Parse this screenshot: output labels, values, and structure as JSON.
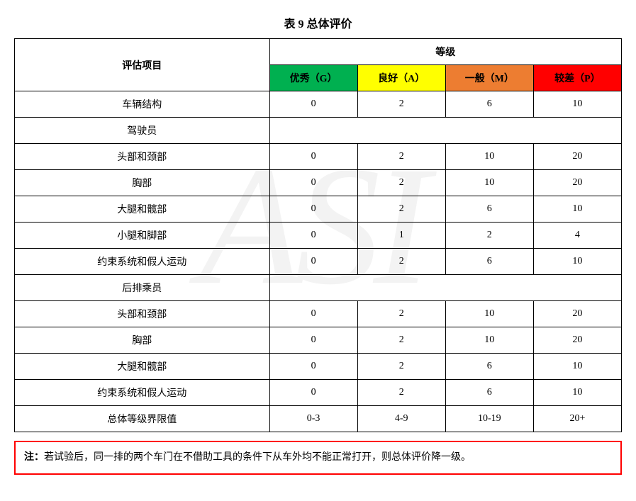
{
  "title": "表 9  总体评价",
  "columns": {
    "eval_item": "评估项目",
    "grade_header": "等级",
    "grade_g": "优秀（G）",
    "grade_a": "良好（A）",
    "grade_m": "一般（M）",
    "grade_p": "较差（P）"
  },
  "grade_colors": {
    "g": "#00b050",
    "a": "#ffff00",
    "m": "#ed7d31",
    "p": "#ff0000"
  },
  "rows": [
    {
      "label": "车辆结构",
      "g": "0",
      "a": "2",
      "m": "6",
      "p": "10",
      "section": false
    },
    {
      "label": "驾驶员",
      "g": "",
      "a": "",
      "m": "",
      "p": "",
      "section": true
    },
    {
      "label": "头部和颈部",
      "g": "0",
      "a": "2",
      "m": "10",
      "p": "20",
      "section": false
    },
    {
      "label": "胸部",
      "g": "0",
      "a": "2",
      "m": "10",
      "p": "20",
      "section": false
    },
    {
      "label": "大腿和髋部",
      "g": "0",
      "a": "2",
      "m": "6",
      "p": "10",
      "section": false
    },
    {
      "label": "小腿和脚部",
      "g": "0",
      "a": "1",
      "m": "2",
      "p": "4",
      "section": false
    },
    {
      "label": "约束系统和假人运动",
      "g": "0",
      "a": "2",
      "m": "6",
      "p": "10",
      "section": false
    },
    {
      "label": "后排乘员",
      "g": "",
      "a": "",
      "m": "",
      "p": "",
      "section": true
    },
    {
      "label": "头部和颈部",
      "g": "0",
      "a": "2",
      "m": "10",
      "p": "20",
      "section": false
    },
    {
      "label": "胸部",
      "g": "0",
      "a": "2",
      "m": "10",
      "p": "20",
      "section": false
    },
    {
      "label": "大腿和髋部",
      "g": "0",
      "a": "2",
      "m": "6",
      "p": "10",
      "section": false
    },
    {
      "label": "约束系统和假人运动",
      "g": "0",
      "a": "2",
      "m": "6",
      "p": "10",
      "section": false
    },
    {
      "label": "总体等级界限值",
      "g": "0-3",
      "a": "4-9",
      "m": "10-19",
      "p": "20+",
      "section": false
    }
  ],
  "note": {
    "label": "注：",
    "text": "若试验后，同一排的两个车门在不借助工具的条件下从车外均不能正常打开，则总体评价降一级。"
  },
  "note_border_color": "#ff0000"
}
